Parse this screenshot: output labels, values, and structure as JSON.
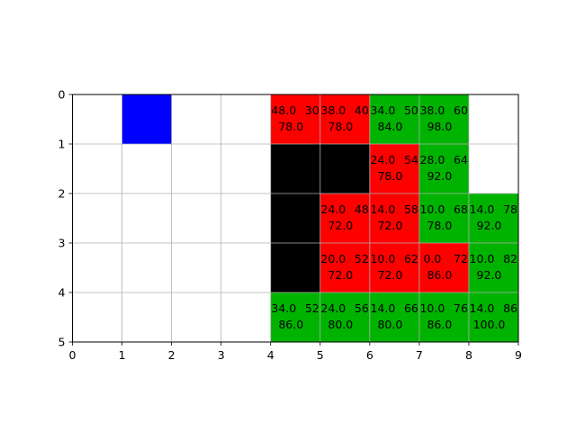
{
  "chart_data": {
    "type": "heatmap",
    "title": "",
    "xlabel": "",
    "ylabel": "",
    "xlim": [
      0,
      9
    ],
    "ylim": [
      5,
      0
    ],
    "y_inverted": true,
    "grid": true,
    "xticks": [
      "0",
      "1",
      "2",
      "3",
      "4",
      "5",
      "6",
      "7",
      "8",
      "9"
    ],
    "yticks": [
      "0",
      "1",
      "2",
      "3",
      "4",
      "5"
    ],
    "colors": {
      "blue": "#0000ff",
      "red": "#ff0000",
      "green": "#00b300",
      "black": "#000000",
      "grid": "#b0b0b0",
      "axis": "#000000"
    },
    "cells": [
      {
        "col": 1,
        "row": 0,
        "color": "blue"
      },
      {
        "col": 4,
        "row": 0,
        "color": "red",
        "text": [
          "48.0",
          "30",
          "78.0"
        ]
      },
      {
        "col": 5,
        "row": 0,
        "color": "red",
        "text": [
          "38.0",
          "40",
          "78.0"
        ]
      },
      {
        "col": 6,
        "row": 0,
        "color": "green",
        "text": [
          "34.0",
          "50",
          "84.0"
        ]
      },
      {
        "col": 7,
        "row": 0,
        "color": "green",
        "text": [
          "38.0",
          "60",
          "98.0"
        ]
      },
      {
        "col": 4,
        "row": 1,
        "color": "black"
      },
      {
        "col": 5,
        "row": 1,
        "color": "black"
      },
      {
        "col": 6,
        "row": 1,
        "color": "red",
        "text": [
          "24.0",
          "54",
          "78.0"
        ]
      },
      {
        "col": 7,
        "row": 1,
        "color": "green",
        "text": [
          "28.0",
          "64",
          "92.0"
        ]
      },
      {
        "col": 4,
        "row": 2,
        "color": "black"
      },
      {
        "col": 5,
        "row": 2,
        "color": "red",
        "text": [
          "24.0",
          "48",
          "72.0"
        ]
      },
      {
        "col": 6,
        "row": 2,
        "color": "red",
        "text": [
          "14.0",
          "58",
          "72.0"
        ]
      },
      {
        "col": 7,
        "row": 2,
        "color": "green",
        "text": [
          "10.0",
          "68",
          "78.0"
        ]
      },
      {
        "col": 8,
        "row": 2,
        "color": "green",
        "text": [
          "14.0",
          "78",
          "92.0"
        ]
      },
      {
        "col": 4,
        "row": 3,
        "color": "black"
      },
      {
        "col": 5,
        "row": 3,
        "color": "red",
        "text": [
          "20.0",
          "52",
          "72.0"
        ]
      },
      {
        "col": 6,
        "row": 3,
        "color": "red",
        "text": [
          "10.0",
          "62",
          "72.0"
        ]
      },
      {
        "col": 7,
        "row": 3,
        "color": "red",
        "text": [
          "0.0",
          "72",
          "86.0"
        ]
      },
      {
        "col": 8,
        "row": 3,
        "color": "green",
        "text": [
          "10.0",
          "82",
          "92.0"
        ]
      },
      {
        "col": 4,
        "row": 4,
        "color": "green",
        "text": [
          "34.0",
          "52",
          "86.0"
        ]
      },
      {
        "col": 5,
        "row": 4,
        "color": "green",
        "text": [
          "24.0",
          "56",
          "80.0"
        ]
      },
      {
        "col": 6,
        "row": 4,
        "color": "green",
        "text": [
          "14.0",
          "66",
          "80.0"
        ]
      },
      {
        "col": 7,
        "row": 4,
        "color": "green",
        "text": [
          "10.0",
          "76",
          "86.0"
        ]
      },
      {
        "col": 8,
        "row": 4,
        "color": "green",
        "text": [
          "14.0",
          "86",
          "100.0"
        ]
      }
    ]
  }
}
